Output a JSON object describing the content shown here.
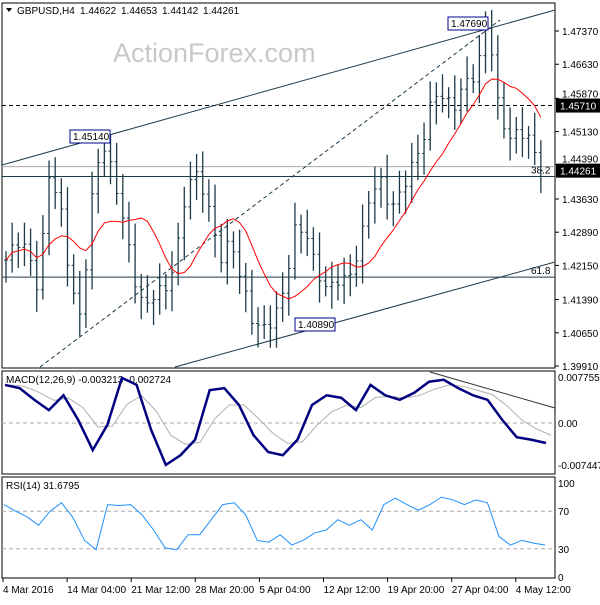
{
  "header": {
    "symbol": "GBPUSD,H4",
    "open": "1.44622",
    "high": "1.44653",
    "low": "1.44142",
    "close": "1.44261"
  },
  "watermark": "ActionForex.com",
  "chart_data": [
    {
      "type": "candlestick-bars",
      "title": "GBPUSD,H4",
      "ylim": [
        1.3991,
        1.4811
      ],
      "y_ticks": [
        "1.47370",
        "1.46630",
        "1.45870",
        "1.45130",
        "1.44390",
        "1.43630",
        "1.42890",
        "1.42150",
        "1.41390",
        "1.40650",
        "1.39910"
      ],
      "x_ticks": [
        "4 Mar 2016",
        "14 Mar 04:00",
        "21 Mar 12:00",
        "28 Mar 20:00",
        "5 Apr 04:00",
        "12 Apr 12:00",
        "19 Apr 20:00",
        "27 Apr 04:00",
        "4 May 12:00"
      ],
      "close_trace": [
        1.4227,
        1.427,
        1.425,
        1.416,
        1.4416,
        1.436,
        1.418,
        1.409,
        1.436,
        1.4494,
        1.4416,
        1.4316,
        1.4183,
        1.4116,
        1.416,
        1.416,
        1.425,
        1.4405,
        1.4416,
        1.4338,
        1.4227,
        1.4272,
        1.4183,
        1.4094,
        1.4072,
        1.4094,
        1.416,
        1.4294,
        1.4294,
        1.4205,
        1.416,
        1.4183,
        1.4183,
        1.425,
        1.4372,
        1.4405,
        1.4338,
        1.4383,
        1.4438,
        1.4494,
        1.4605,
        1.4583,
        1.4572,
        1.4627,
        1.4638,
        1.4769,
        1.4572,
        1.4494,
        1.4516,
        1.4494,
        1.4426
      ],
      "moving_average_color": "#ff0000",
      "bar_color": "#1c3a4a",
      "last_price": "1.44261",
      "horizontal_level": "1.45710",
      "annotations": [
        "1.45140",
        "1.47690",
        "1.40890"
      ],
      "fib_labels": [
        "38.2",
        "61.8"
      ],
      "fib_levels": [
        1.4413,
        1.4189
      ]
    },
    {
      "type": "line",
      "title": "MACD(12,26,9) -0.003213 -0.002724",
      "y_ticks": [
        "0.007755",
        "0.00",
        "-0.007447"
      ],
      "ylim": [
        -0.007447,
        0.007755
      ],
      "series": [
        {
          "color": "#000080",
          "values": [
            0.0059,
            0.0054,
            0.0036,
            0.002,
            0.0043,
            0.0005,
            -0.0042,
            -0.0003,
            0.007,
            0.0059,
            -0.0011,
            -0.0065,
            -0.005,
            -0.0026,
            0.0051,
            0.0054,
            0.0028,
            -0.0019,
            -0.0045,
            -0.005,
            -0.0026,
            0.0028,
            0.0043,
            0.0039,
            0.002,
            0.0059,
            0.0043,
            0.0036,
            0.0047,
            0.0064,
            0.0067,
            0.0054,
            0.0043,
            0.0036,
            0.0005,
            -0.0022,
            -0.0026,
            -0.0031
          ]
        }
      ]
    },
    {
      "type": "line",
      "title": "RSI(14) 31.6795",
      "y_ticks": [
        "100",
        "70",
        "30",
        "0"
      ],
      "ylim": [
        0,
        100
      ],
      "series": [
        {
          "color": "#1e90ff",
          "values": [
            77,
            70,
            64,
            55,
            70,
            79,
            63,
            39,
            29,
            77,
            76,
            77,
            66,
            50,
            31,
            29,
            45,
            45,
            61,
            77,
            79,
            66,
            39,
            37,
            45,
            34,
            39,
            47,
            50,
            61,
            55,
            61,
            50,
            77,
            84,
            77,
            71,
            77,
            85,
            82,
            77,
            82,
            79,
            43,
            34,
            39,
            36,
            34
          ]
        }
      ]
    }
  ]
}
